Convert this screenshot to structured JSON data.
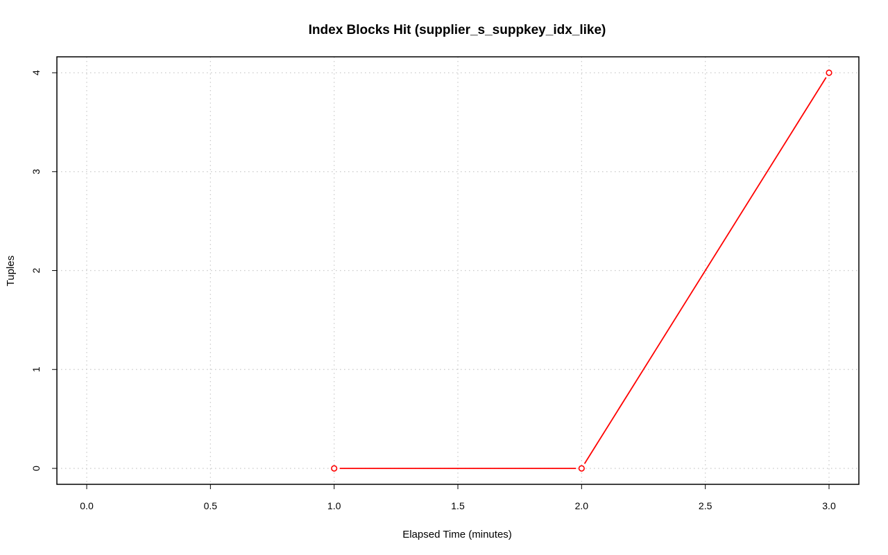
{
  "chart_data": {
    "type": "line",
    "title": "Index Blocks Hit (supplier_s_suppkey_idx_like)",
    "xlabel": "Elapsed Time (minutes)",
    "ylabel": "Tuples",
    "xlim": [
      0.0,
      3.0
    ],
    "ylim": [
      0,
      4
    ],
    "x_ticks": [
      "0.0",
      "0.5",
      "1.0",
      "1.5",
      "2.0",
      "2.5",
      "3.0"
    ],
    "y_ticks": [
      "0",
      "1",
      "2",
      "3",
      "4"
    ],
    "grid": true,
    "series": [
      {
        "color": "#ff0000",
        "x": [
          1.0,
          2.0,
          3.0
        ],
        "y": [
          0,
          0,
          4
        ]
      }
    ]
  }
}
